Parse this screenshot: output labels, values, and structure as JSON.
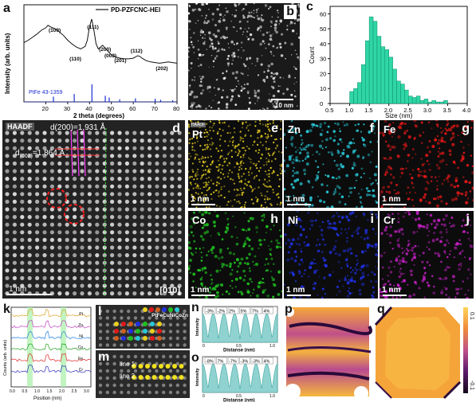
{
  "panel_labels": [
    "a",
    "b",
    "c",
    "d",
    "e",
    "f",
    "g",
    "h",
    "i",
    "j",
    "k",
    "l",
    "m",
    "n",
    "o",
    "p",
    "q"
  ],
  "colors": {
    "teal_bar": "#2fd6a6",
    "xrd_line": "#111111",
    "ref_line": "#1a2fd0",
    "pt_yellow": "#e8d020",
    "zn_cyan": "#28c8d8",
    "fe_red": "#e01818",
    "co_green": "#20c020",
    "ni_blue": "#2030e0",
    "cr_magenta": "#c020c0",
    "strain_high": "#f6b73c",
    "strain_low": "#2a0a3a"
  },
  "panel_a": {
    "legend": "PD-PZFCNC-HEI",
    "ylabel": "Intensity (arb. units)",
    "xlabel": "2 theta (degrees)",
    "ref_label": "PtFe 43-1359",
    "peak_labels": [
      "(100)",
      "(110)",
      "(111)",
      "(200)",
      "(002)",
      "(201)",
      "(112)",
      "(202)"
    ]
  },
  "panel_b": {
    "scale": "10 nm"
  },
  "panel_c": {
    "ylabel": "Count",
    "xlabel": "Size (nm)"
  },
  "panel_d": {
    "title": "HAADF",
    "d200": "d(200)=1.931 Å",
    "d002_sym": "d",
    "d002_sub": "(002)",
    "d002_val": "=1.864 Å",
    "scale": "1 nm",
    "zone": "[010]"
  },
  "maps": [
    {
      "label": "Pt",
      "scale": "1 nm",
      "tag": "HAADF"
    },
    {
      "label": "Zn",
      "scale": "1 nm"
    },
    {
      "label": "Fe",
      "scale": "1 nm"
    },
    {
      "label": "Co",
      "scale": "1 nm"
    },
    {
      "label": "Ni",
      "scale": "1 nm"
    },
    {
      "label": "Cr",
      "scale": "1 nm"
    }
  ],
  "panel_k": {
    "ylabel": "Counts (arb. units)",
    "xlabel": "Position (nm)",
    "traces": [
      "Pt",
      "Zn",
      "Ni",
      "Co",
      "Fe",
      "Cr"
    ],
    "ticks": [
      "0.0",
      "0.5",
      "1.0",
      "1.5",
      "2.0",
      "2.5",
      "3.0"
    ]
  },
  "panel_l": {
    "legend": "PtFeCuNiCoZn"
  },
  "panel_m": {
    "line1": "line 1",
    "line2": "line 2"
  },
  "panel_n": {
    "ylabel": "Intensity",
    "xlabel": "Distanse (nm)",
    "strains": [
      "-3%",
      "-2%",
      "2%",
      "5%",
      "7%",
      "4%"
    ],
    "ticks": [
      "0",
      "0.5",
      "1.0"
    ]
  },
  "panel_o": {
    "ylabel": "Intensity",
    "xlabel": "Distanse (nm)",
    "strains": [
      "-8%",
      "7%",
      "-7%",
      "-3%",
      "-3%",
      "4%"
    ],
    "ticks": [
      "0",
      "0.5",
      "1.0"
    ]
  },
  "colorbar": {
    "max": "0.1",
    "min": "-0.1"
  },
  "chart_data": [
    {
      "type": "line",
      "title": "",
      "xlabel": "2 theta (degrees)",
      "ylabel": "Intensity (arb. units)",
      "xlim": [
        10,
        80
      ],
      "x_ticks": [
        20,
        30,
        40,
        50,
        60,
        70,
        80
      ],
      "series": [
        {
          "name": "PD-PZFCNC-HEI",
          "x": [
            10,
            12,
            14,
            16,
            18,
            20,
            21,
            22,
            23,
            24,
            25,
            26,
            28,
            30,
            31,
            32,
            34,
            36,
            38,
            39,
            40,
            41,
            42,
            43,
            44,
            45,
            46,
            47,
            48,
            49,
            50,
            52,
            54,
            56,
            58,
            60,
            61,
            62,
            63,
            64,
            66,
            68,
            70,
            72,
            74,
            76,
            78,
            80
          ],
          "y": [
            0.62,
            0.66,
            0.71,
            0.76,
            0.82,
            0.86,
            0.9,
            0.88,
            0.86,
            0.85,
            0.83,
            0.8,
            0.74,
            0.66,
            0.63,
            0.6,
            0.55,
            0.52,
            0.56,
            0.66,
            0.88,
            1.0,
            0.82,
            0.6,
            0.52,
            0.55,
            0.58,
            0.54,
            0.5,
            0.46,
            0.43,
            0.39,
            0.37,
            0.36,
            0.36,
            0.37,
            0.39,
            0.41,
            0.4,
            0.37,
            0.33,
            0.31,
            0.3,
            0.29,
            0.3,
            0.31,
            0.3,
            0.29
          ]
        }
      ],
      "reference": {
        "name": "PtFe 43-1359",
        "x": [
          23.5,
          33.0,
          41.1,
          47.2,
          49.0,
          53.8,
          61.0,
          70.0,
          72.5,
          78.0
        ],
        "h": [
          0.3,
          0.45,
          1.0,
          0.35,
          0.25,
          0.15,
          0.2,
          0.18,
          0.12,
          0.1
        ]
      }
    },
    {
      "type": "bar",
      "title": "",
      "xlabel": "Size (nm)",
      "ylabel": "Count",
      "xlim": [
        0.5,
        4.0
      ],
      "ylim": [
        0,
        65
      ],
      "x_ticks": [
        0.5,
        1.0,
        1.5,
        2.0,
        2.5,
        3.0,
        3.5,
        4.0
      ],
      "y_ticks": [
        0,
        10,
        20,
        30,
        40,
        50,
        60
      ],
      "bin_width": 0.1,
      "bin_starts": [
        1.0,
        1.1,
        1.2,
        1.3,
        1.4,
        1.5,
        1.6,
        1.7,
        1.8,
        1.9,
        2.0,
        2.1,
        2.2,
        2.3,
        2.4,
        2.5,
        2.6,
        2.7,
        2.8,
        2.9,
        3.0,
        3.1,
        3.2,
        3.3,
        3.4
      ],
      "values": [
        8,
        10,
        14,
        26,
        42,
        58,
        55,
        45,
        38,
        36,
        31,
        23,
        15,
        13,
        9,
        5,
        4,
        5,
        2,
        3,
        1,
        2,
        1,
        1,
        2
      ]
    }
  ]
}
